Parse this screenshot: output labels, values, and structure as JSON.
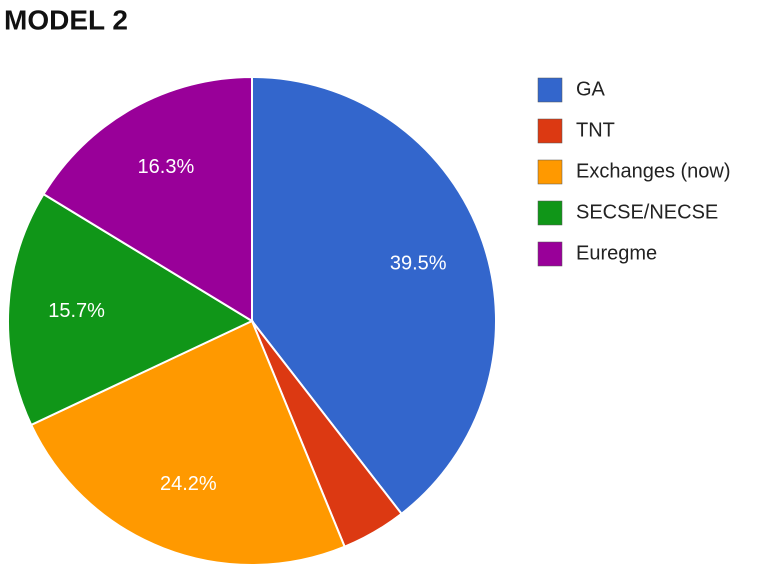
{
  "chart_data": {
    "type": "pie",
    "title": "MODEL 2",
    "categories": [
      "GA",
      "TNT",
      "Exchanges (now)",
      "SECSE/NECSE",
      "Euregme"
    ],
    "values": [
      39.5,
      4.3,
      24.2,
      15.7,
      16.3
    ],
    "value_labels": [
      "39.5%",
      null,
      "24.2%",
      "15.7%",
      "16.3%"
    ],
    "colors": [
      "#3366cc",
      "#dc3912",
      "#ff9900",
      "#109618",
      "#990099"
    ],
    "legend": "right"
  }
}
